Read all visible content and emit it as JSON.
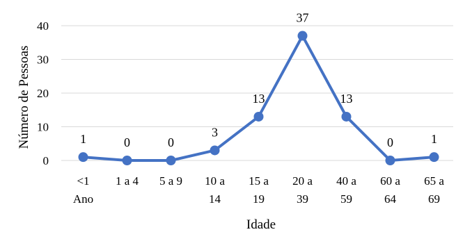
{
  "chart_data": {
    "type": "line",
    "title": "",
    "xlabel": "Idade",
    "ylabel": "Número de Pessoas",
    "categories": [
      [
        "<1",
        "Ano"
      ],
      [
        "1 a 4"
      ],
      [
        "5 a 9"
      ],
      [
        "10 a",
        "14"
      ],
      [
        "15 a",
        "19"
      ],
      [
        "20 a",
        "39"
      ],
      [
        "40 a",
        "59"
      ],
      [
        "60 a",
        "64"
      ],
      [
        "65 a",
        "69"
      ]
    ],
    "values": [
      1,
      0,
      0,
      3,
      13,
      37,
      13,
      0,
      1
    ],
    "ylim": [
      0,
      40
    ],
    "yticks": [
      0,
      10,
      20,
      30,
      40
    ],
    "grid": true,
    "legend": "none",
    "colors": {
      "line": "#4472C4",
      "grid": "#d9d9d9"
    }
  }
}
